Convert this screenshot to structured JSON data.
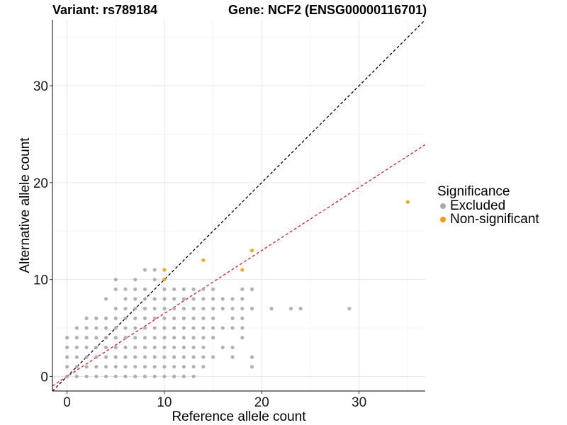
{
  "title": {
    "variant": "Variant: rs789184",
    "gene": "Gene: NCF2 (ENSG00000116701)"
  },
  "legend": {
    "title": "Significance",
    "items": [
      {
        "label": "Excluded",
        "color": "#aaaaaa"
      },
      {
        "label": "Non-significant",
        "color": "#f39c12"
      }
    ]
  },
  "chart_data": {
    "type": "scatter",
    "xlabel": "Reference allele count",
    "ylabel": "Alternative allele count",
    "xlim": [
      -1.5,
      36.8
    ],
    "ylim": [
      -1.5,
      36.8
    ],
    "xticks": [
      0,
      10,
      20,
      30
    ],
    "yticks": [
      0,
      10,
      20,
      30
    ],
    "grid": true,
    "legend_position": "right",
    "reference_lines": [
      {
        "name": "equal",
        "slope": 1,
        "intercept": 0,
        "color": "#000000",
        "dash": true
      },
      {
        "name": "fit",
        "slope": 0.65,
        "intercept": 0,
        "color": "#e41a1c",
        "dash": true
      }
    ],
    "series": [
      {
        "name": "Excluded",
        "color": "#aaaaaa",
        "points": [
          [
            0,
            0
          ],
          [
            0,
            1
          ],
          [
            0,
            2
          ],
          [
            0,
            3
          ],
          [
            0,
            4
          ],
          [
            1,
            0
          ],
          [
            1,
            1
          ],
          [
            1,
            2
          ],
          [
            1,
            3
          ],
          [
            1,
            4
          ],
          [
            1,
            5
          ],
          [
            2,
            0
          ],
          [
            2,
            1
          ],
          [
            2,
            2
          ],
          [
            2,
            3
          ],
          [
            2,
            4
          ],
          [
            2,
            5
          ],
          [
            2,
            6
          ],
          [
            3,
            0
          ],
          [
            3,
            1
          ],
          [
            3,
            2
          ],
          [
            3,
            3
          ],
          [
            3,
            4
          ],
          [
            3,
            5
          ],
          [
            3,
            6
          ],
          [
            4,
            0
          ],
          [
            4,
            1
          ],
          [
            4,
            2
          ],
          [
            4,
            3
          ],
          [
            4,
            4
          ],
          [
            4,
            5
          ],
          [
            4,
            6
          ],
          [
            4,
            8
          ],
          [
            5,
            0
          ],
          [
            5,
            1
          ],
          [
            5,
            2
          ],
          [
            5,
            3
          ],
          [
            5,
            4
          ],
          [
            5,
            5
          ],
          [
            5,
            6
          ],
          [
            5,
            7
          ],
          [
            5,
            9
          ],
          [
            5,
            10
          ],
          [
            6,
            0
          ],
          [
            6,
            1
          ],
          [
            6,
            2
          ],
          [
            6,
            3
          ],
          [
            6,
            4
          ],
          [
            6,
            5
          ],
          [
            6,
            6
          ],
          [
            6,
            7
          ],
          [
            6,
            8
          ],
          [
            6,
            9
          ],
          [
            7,
            0
          ],
          [
            7,
            1
          ],
          [
            7,
            2
          ],
          [
            7,
            3
          ],
          [
            7,
            4
          ],
          [
            7,
            5
          ],
          [
            7,
            6
          ],
          [
            7,
            7
          ],
          [
            7,
            8
          ],
          [
            7,
            9
          ],
          [
            7,
            10
          ],
          [
            8,
            0
          ],
          [
            8,
            1
          ],
          [
            8,
            2
          ],
          [
            8,
            3
          ],
          [
            8,
            4
          ],
          [
            8,
            5
          ],
          [
            8,
            6
          ],
          [
            8,
            7
          ],
          [
            8,
            8
          ],
          [
            8,
            9
          ],
          [
            8,
            11
          ],
          [
            9,
            0
          ],
          [
            9,
            1
          ],
          [
            9,
            2
          ],
          [
            9,
            3
          ],
          [
            9,
            4
          ],
          [
            9,
            5
          ],
          [
            9,
            6
          ],
          [
            9,
            7
          ],
          [
            9,
            8
          ],
          [
            9,
            10
          ],
          [
            9,
            11
          ],
          [
            10,
            0
          ],
          [
            10,
            1
          ],
          [
            10,
            2
          ],
          [
            10,
            3
          ],
          [
            10,
            4
          ],
          [
            10,
            5
          ],
          [
            10,
            6
          ],
          [
            10,
            7
          ],
          [
            10,
            8
          ],
          [
            10,
            9
          ],
          [
            11,
            0
          ],
          [
            11,
            1
          ],
          [
            11,
            2
          ],
          [
            11,
            3
          ],
          [
            11,
            4
          ],
          [
            11,
            5
          ],
          [
            11,
            6
          ],
          [
            11,
            7
          ],
          [
            11,
            8
          ],
          [
            11,
            9
          ],
          [
            12,
            0
          ],
          [
            12,
            1
          ],
          [
            12,
            2
          ],
          [
            12,
            3
          ],
          [
            12,
            4
          ],
          [
            12,
            5
          ],
          [
            12,
            6
          ],
          [
            12,
            7
          ],
          [
            12,
            8
          ],
          [
            12,
            9
          ],
          [
            13,
            0
          ],
          [
            13,
            1
          ],
          [
            13,
            2
          ],
          [
            13,
            3
          ],
          [
            13,
            4
          ],
          [
            13,
            5
          ],
          [
            13,
            6
          ],
          [
            13,
            7
          ],
          [
            13,
            8
          ],
          [
            13,
            9
          ],
          [
            14,
            1
          ],
          [
            14,
            2
          ],
          [
            14,
            3
          ],
          [
            14,
            4
          ],
          [
            14,
            5
          ],
          [
            14,
            6
          ],
          [
            14,
            7
          ],
          [
            14,
            8
          ],
          [
            14,
            9
          ],
          [
            15,
            2
          ],
          [
            15,
            4
          ],
          [
            15,
            5
          ],
          [
            15,
            6
          ],
          [
            15,
            7
          ],
          [
            15,
            8
          ],
          [
            15,
            9
          ],
          [
            16,
            3
          ],
          [
            16,
            5
          ],
          [
            16,
            7
          ],
          [
            16,
            8
          ],
          [
            17,
            2
          ],
          [
            17,
            3
          ],
          [
            17,
            5
          ],
          [
            17,
            6
          ],
          [
            17,
            7
          ],
          [
            17,
            8
          ],
          [
            18,
            4
          ],
          [
            18,
            5
          ],
          [
            18,
            6
          ],
          [
            18,
            7
          ],
          [
            18,
            8
          ],
          [
            18,
            9
          ],
          [
            19,
            1
          ],
          [
            19,
            2
          ],
          [
            19,
            7
          ],
          [
            19,
            9
          ],
          [
            21,
            7
          ],
          [
            23,
            7
          ],
          [
            24,
            7
          ],
          [
            29,
            7
          ]
        ]
      },
      {
        "name": "Non-significant",
        "color": "#f39c12",
        "points": [
          [
            10,
            10
          ],
          [
            10,
            11
          ],
          [
            14,
            12
          ],
          [
            18,
            11
          ],
          [
            19,
            13
          ],
          [
            35,
            18
          ]
        ]
      }
    ]
  }
}
